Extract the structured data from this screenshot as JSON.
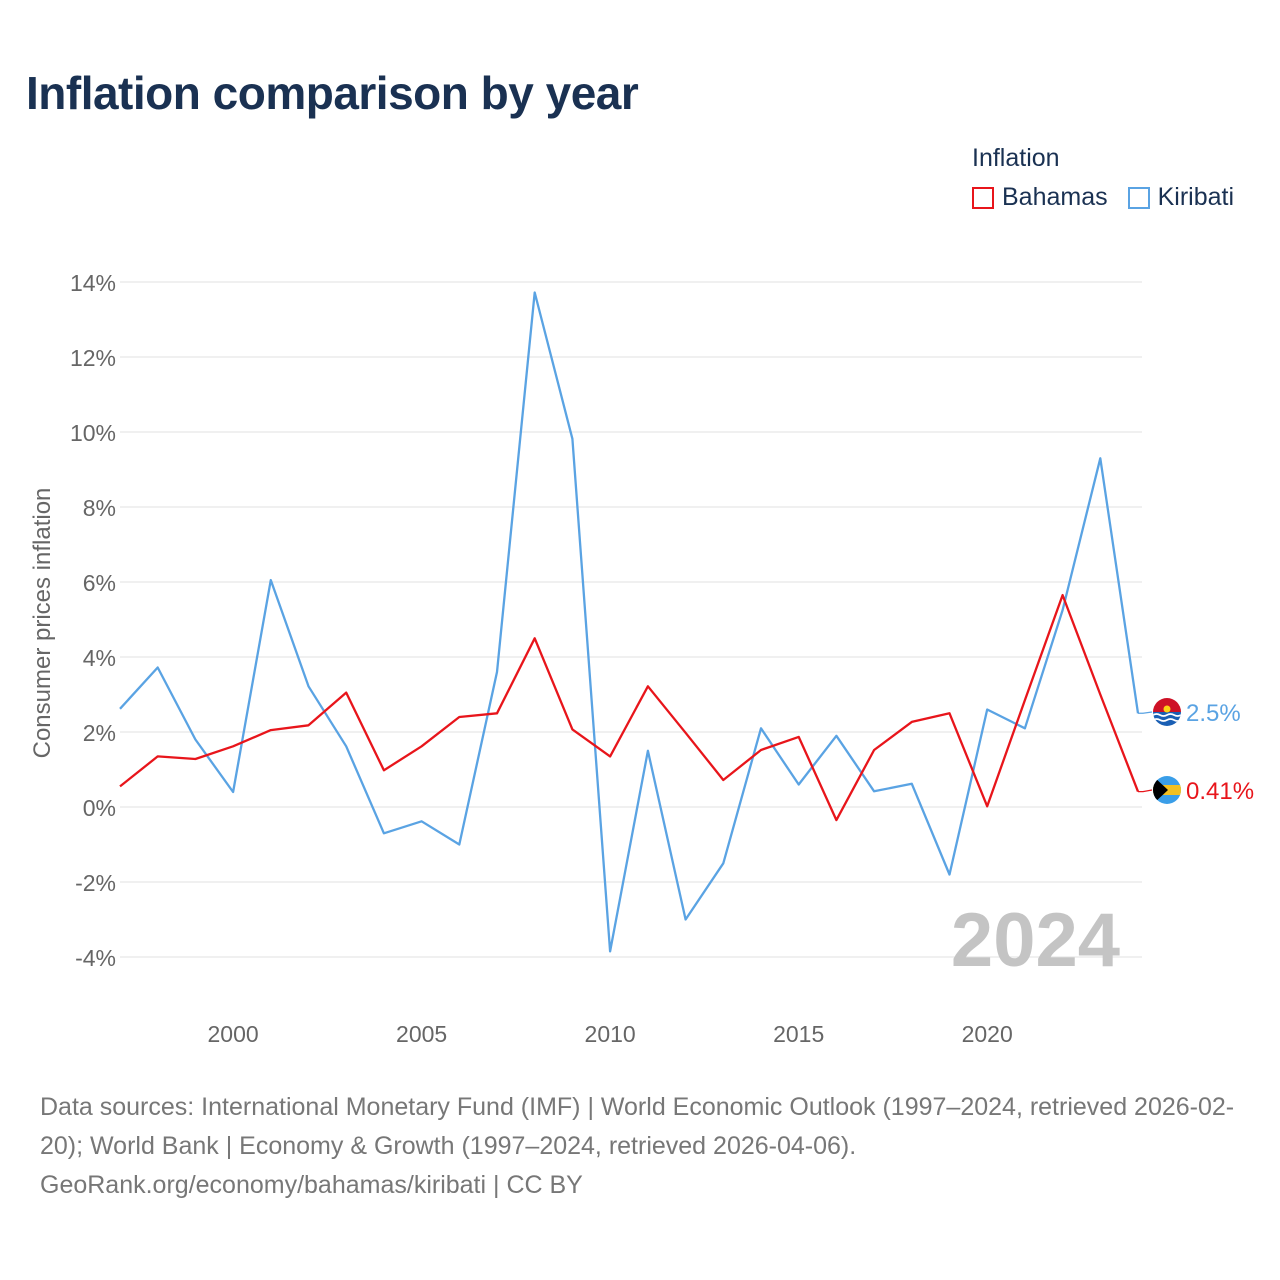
{
  "title": "Inflation comparison by year",
  "legend": {
    "title": "Inflation",
    "items": [
      {
        "label": "Bahamas",
        "color": "#e8151b"
      },
      {
        "label": "Kiribati",
        "color": "#5aa3e3"
      }
    ]
  },
  "chart_data": {
    "type": "line",
    "title": "Inflation comparison by year",
    "xlabel": "",
    "ylabel": "Consumer prices inflation",
    "x": [
      1997,
      1998,
      1999,
      2000,
      2001,
      2002,
      2003,
      2004,
      2005,
      2006,
      2007,
      2008,
      2009,
      2010,
      2011,
      2012,
      2013,
      2014,
      2015,
      2016,
      2017,
      2018,
      2019,
      2020,
      2021,
      2022,
      2023,
      2024
    ],
    "xlim": [
      1997,
      2024
    ],
    "ylim": [
      -4,
      14
    ],
    "x_ticks": [
      2000,
      2005,
      2010,
      2015,
      2020
    ],
    "y_ticks": [
      -4,
      -2,
      0,
      2,
      4,
      6,
      8,
      10,
      12,
      14
    ],
    "y_tick_labels": [
      "-4%",
      "-2%",
      "0%",
      "2%",
      "4%",
      "6%",
      "8%",
      "10%",
      "12%",
      "14%"
    ],
    "grid": true,
    "legend_position": "top-right",
    "year_overlay": "2024",
    "series": [
      {
        "name": "Bahamas",
        "color": "#e8151b",
        "values": [
          0.55,
          1.35,
          1.28,
          1.62,
          2.05,
          2.18,
          3.05,
          0.98,
          1.62,
          2.4,
          2.5,
          4.5,
          2.07,
          1.35,
          3.22,
          1.98,
          0.72,
          1.52,
          1.87,
          -0.35,
          1.52,
          2.27,
          2.5,
          0.02,
          2.85,
          5.65,
          3.0,
          0.41
        ],
        "end_label": "0.41%"
      },
      {
        "name": "Kiribati",
        "color": "#5aa3e3",
        "values": [
          2.62,
          3.72,
          1.8,
          0.4,
          6.05,
          3.22,
          1.62,
          -0.7,
          -0.38,
          -1.0,
          3.6,
          13.72,
          9.82,
          -3.85,
          1.5,
          -3.0,
          -1.5,
          2.1,
          0.6,
          1.9,
          0.42,
          0.62,
          -1.8,
          2.6,
          2.1,
          5.25,
          9.3,
          2.5
        ],
        "end_label": "2.5%"
      }
    ]
  },
  "source": {
    "line1": "Data sources: International Monetary Fund (IMF) | World Economic Outlook (1997–2024, retrieved 2026-02-20); World Bank | Economy & Growth (1997–2024, retrieved 2026-04-06).",
    "line2": "GeoRank.org/economy/bahamas/kiribati | CC BY"
  }
}
